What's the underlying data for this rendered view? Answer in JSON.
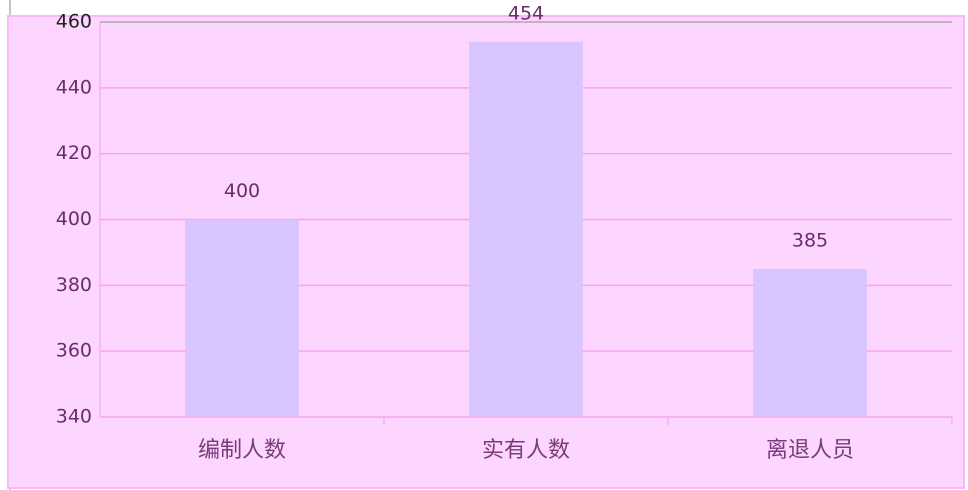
{
  "chart_data": {
    "type": "bar",
    "categories": [
      "编制人数",
      "实有人数",
      "离退人员"
    ],
    "values": [
      400,
      454,
      385
    ],
    "color": "#d8c4ff",
    "ylim": [
      340,
      460
    ],
    "yticks": [
      340,
      360,
      380,
      400,
      420,
      440,
      460
    ],
    "grid": true
  }
}
